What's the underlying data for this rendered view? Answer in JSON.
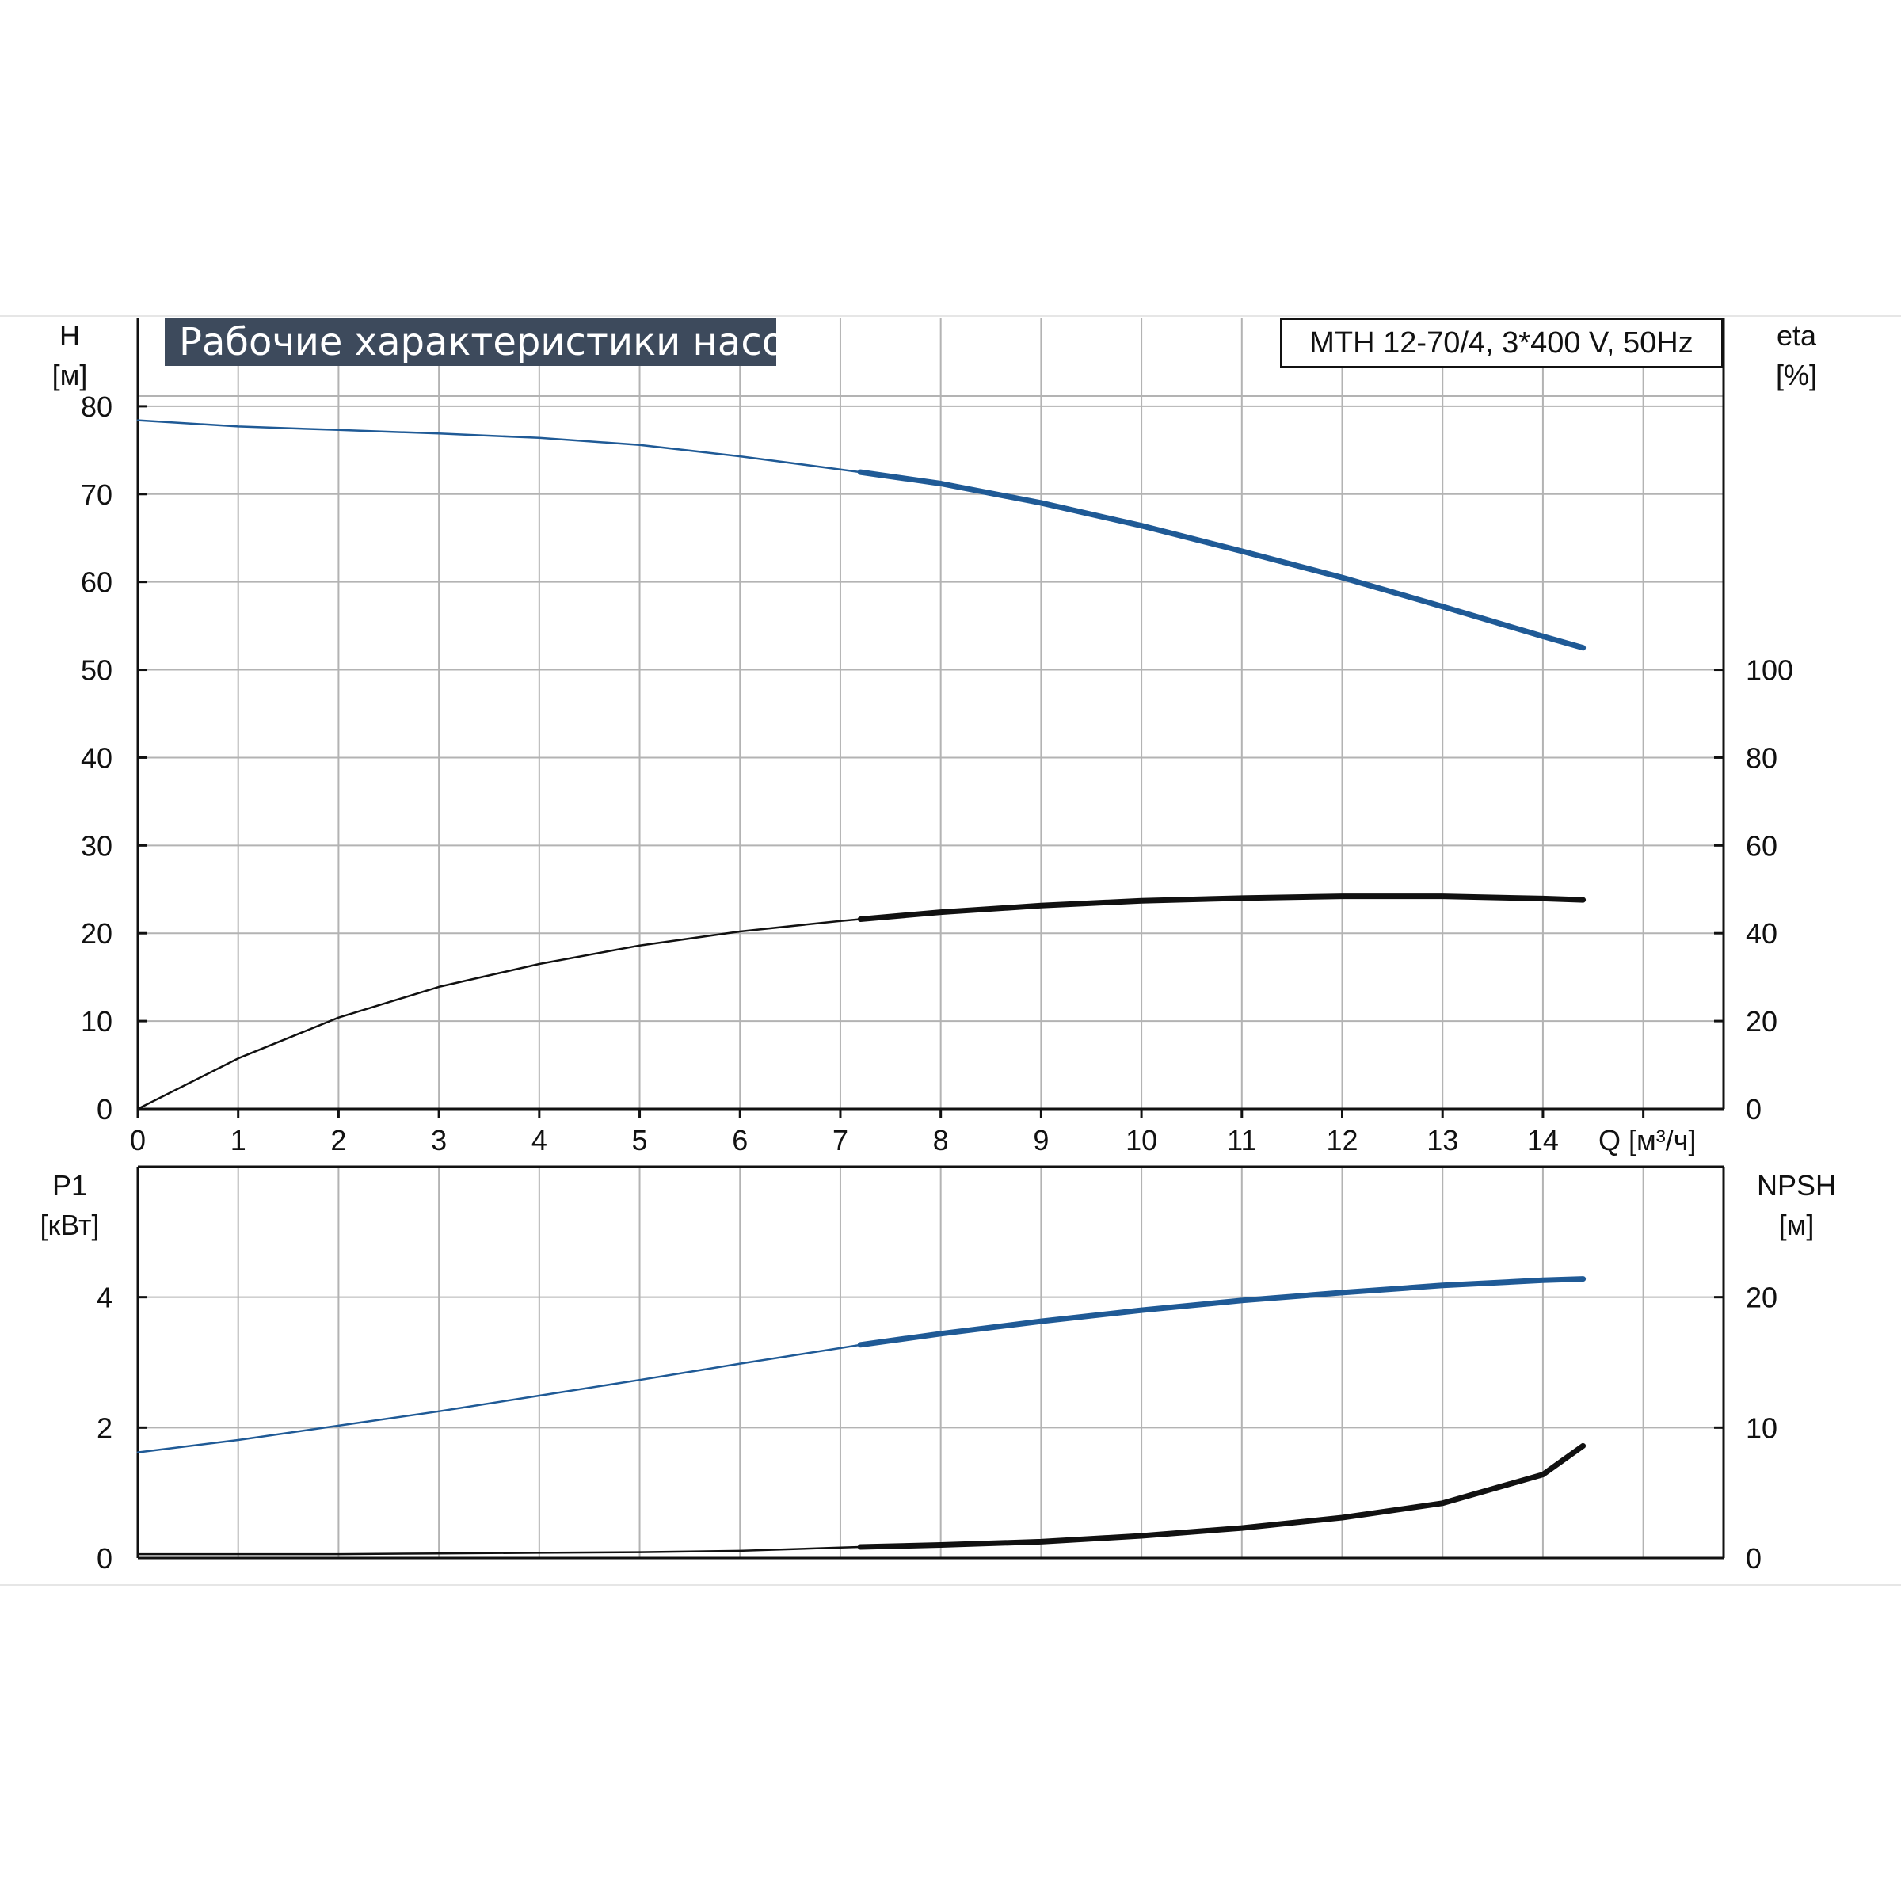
{
  "title": "Рабочие характеристики насоса",
  "model_label": "MTH 12-70/4, 3*400 V, 50Hz",
  "colors": {
    "blue": "#1f5a96",
    "black": "#111111",
    "grid": "#b3b3b3",
    "banner": "#3d4a5c"
  },
  "chart_data": [
    {
      "type": "line",
      "title": "",
      "x_label": "Q [м³/ч]",
      "x_ticks": [
        "0",
        "1",
        "2",
        "3",
        "4",
        "5",
        "6",
        "7",
        "8",
        "9",
        "10",
        "11",
        "12",
        "13",
        "14"
      ],
      "xlim": [
        0,
        15.8
      ],
      "left_axis": {
        "label_line1": "H",
        "label_line2": "[м]",
        "ylim": [
          0,
          90
        ],
        "ticks": [
          "0",
          "10",
          "20",
          "30",
          "40",
          "50",
          "60",
          "70",
          "80"
        ]
      },
      "right_axis": {
        "label_line1": "eta",
        "label_line2": "[%]",
        "ylim": [
          0,
          180
        ],
        "ticks": [
          "0",
          "20",
          "40",
          "60",
          "80",
          "100"
        ]
      },
      "grid": true,
      "series": [
        {
          "axis": "left",
          "color": "blue",
          "bold_from_x": 7.2,
          "x": [
            0,
            1,
            2,
            3,
            4,
            5,
            6,
            7,
            7.2,
            8,
            9,
            10,
            11,
            12,
            13,
            14,
            14.4
          ],
          "y": [
            78.4,
            77.7,
            77.3,
            76.9,
            76.4,
            75.6,
            74.3,
            72.8,
            72.5,
            71.2,
            69.0,
            66.4,
            63.5,
            60.5,
            57.2,
            53.8,
            52.5
          ]
        },
        {
          "axis": "right",
          "color": "black",
          "bold_from_x": 7.2,
          "x": [
            0,
            1,
            2,
            3,
            4,
            5,
            6,
            7,
            7.2,
            8,
            9,
            10,
            11,
            12,
            13,
            14,
            14.4
          ],
          "y": [
            0,
            11.5,
            20.8,
            27.8,
            33.0,
            37.2,
            40.4,
            42.8,
            43.2,
            44.8,
            46.3,
            47.4,
            48.0,
            48.4,
            48.4,
            47.9,
            47.6
          ]
        }
      ]
    },
    {
      "type": "line",
      "title": "",
      "xlim": [
        0,
        15.8
      ],
      "left_axis": {
        "label_line1": "P1",
        "label_line2": "[кВт]",
        "ylim": [
          0,
          6
        ],
        "ticks": [
          "0",
          "2",
          "4"
        ]
      },
      "right_axis": {
        "label_line1": "NPSH",
        "label_line2": "[м]",
        "ylim": [
          0,
          30
        ],
        "ticks": [
          "0",
          "10",
          "20"
        ]
      },
      "grid": true,
      "series": [
        {
          "axis": "left",
          "color": "blue",
          "bold_from_x": 7.2,
          "x": [
            0,
            1,
            2,
            3,
            4,
            5,
            6,
            7,
            7.2,
            8,
            9,
            10,
            11,
            12,
            13,
            14,
            14.4
          ],
          "y": [
            1.62,
            1.81,
            2.03,
            2.25,
            2.49,
            2.73,
            2.98,
            3.22,
            3.27,
            3.44,
            3.63,
            3.8,
            3.95,
            4.07,
            4.18,
            4.26,
            4.28
          ]
        },
        {
          "axis": "right",
          "color": "black",
          "bold_from_x": 7.2,
          "x": [
            0,
            1,
            2,
            3,
            4,
            5,
            6,
            7,
            7.2,
            8,
            9,
            10,
            11,
            12,
            13,
            14,
            14.4
          ],
          "y": [
            0.3,
            0.3,
            0.3,
            0.35,
            0.4,
            0.45,
            0.55,
            0.8,
            0.85,
            1.0,
            1.25,
            1.7,
            2.3,
            3.1,
            4.2,
            6.4,
            8.6
          ]
        }
      ]
    }
  ]
}
